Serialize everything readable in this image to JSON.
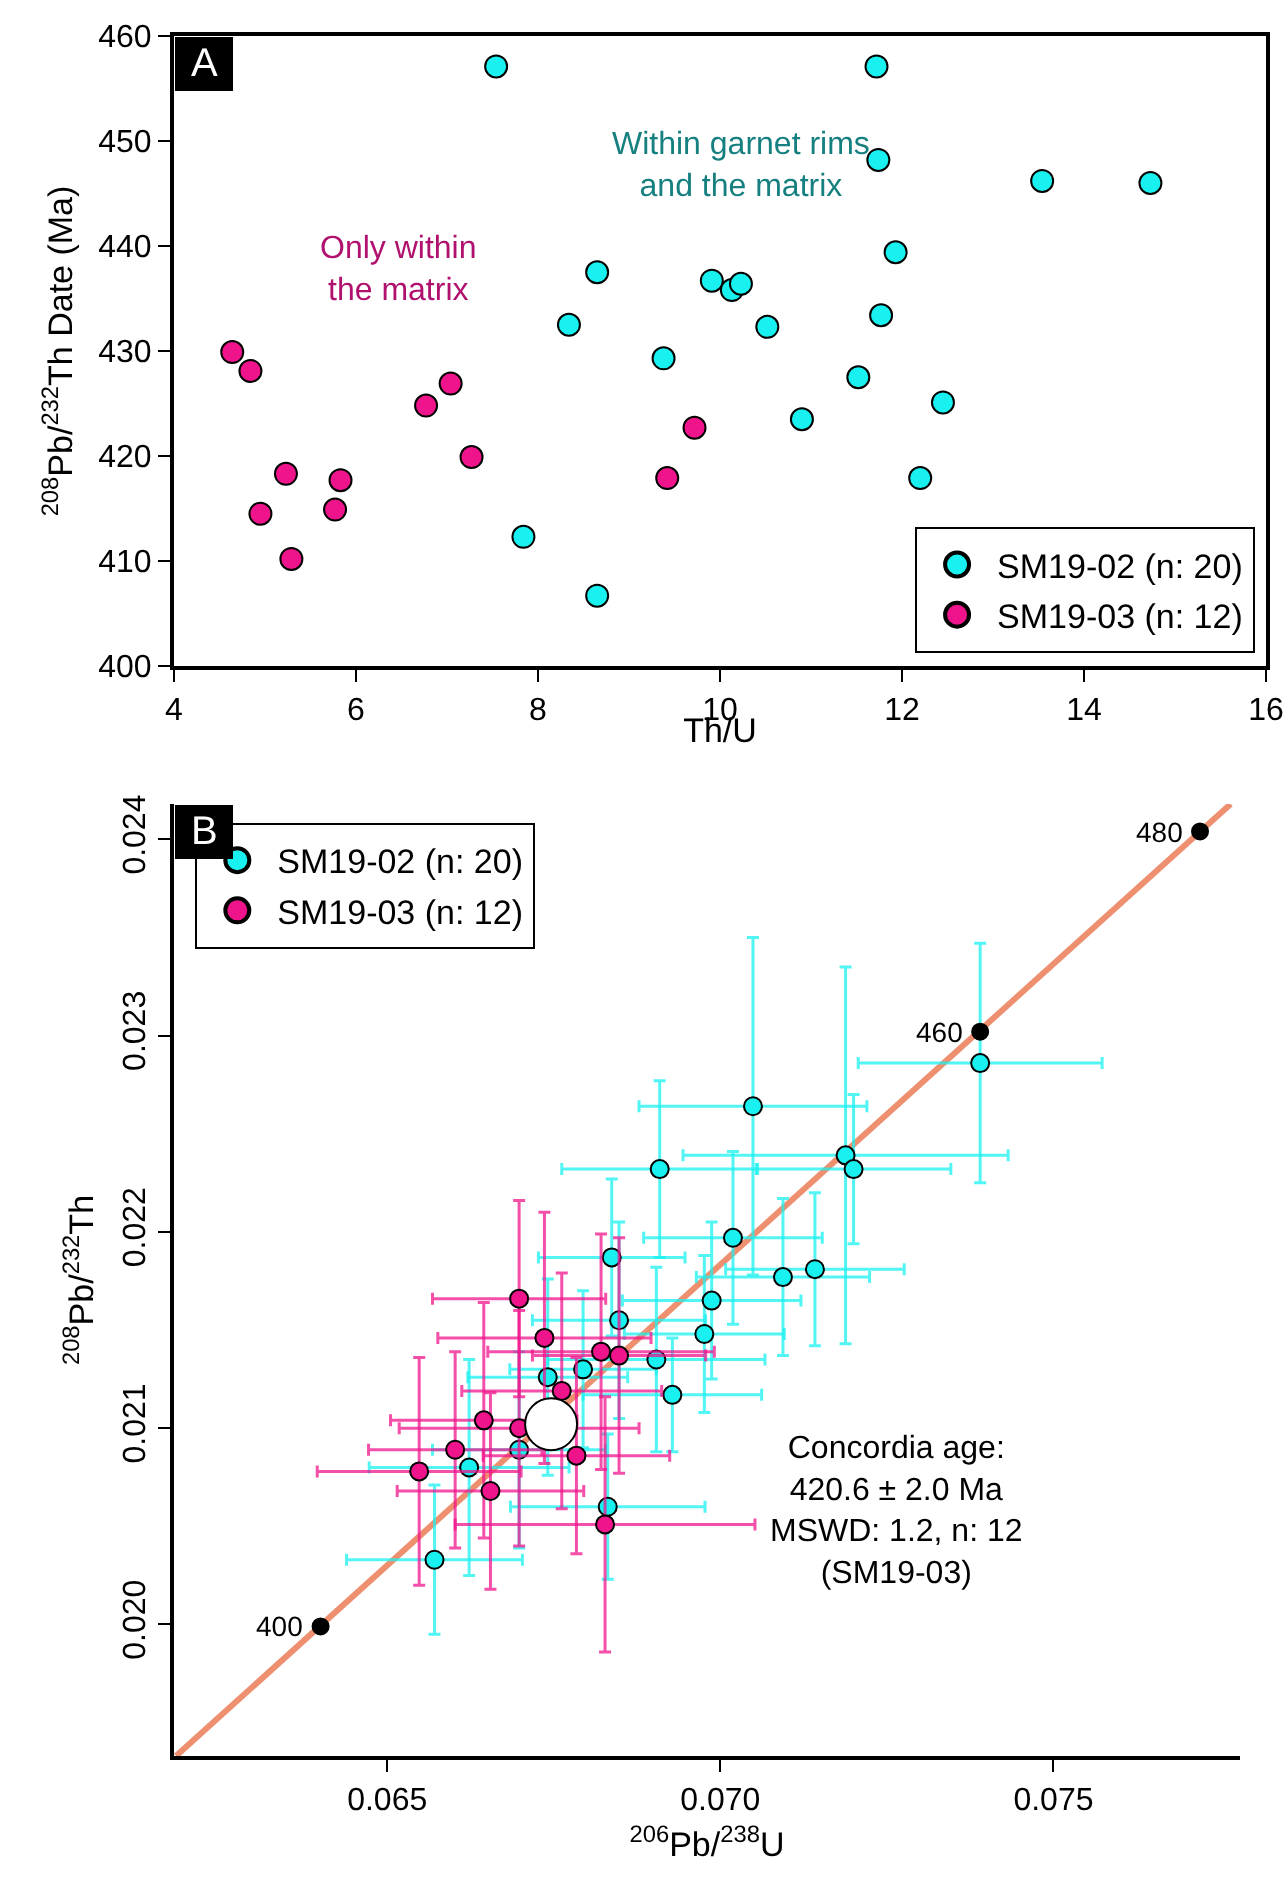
{
  "chart_data": [
    {
      "type": "scatter",
      "title": "A",
      "xlabel": "Th/U",
      "ylabel": "$^{208}$Pb/$^{232}$Th Date (Ma)",
      "xlim": [
        4,
        16
      ],
      "xticks": [
        4,
        6,
        8,
        10,
        12,
        14,
        16
      ],
      "ylim": [
        400,
        460
      ],
      "yticks": [
        400,
        410,
        420,
        430,
        440,
        450,
        460
      ],
      "grid": false,
      "legend": "bottom right",
      "marker": "circle",
      "annotations": [
        "Only within\nthe matrix",
        "Within garnet rims\nand the matrix"
      ],
      "series": [
        {
          "name": "SM19-02 (n: 20)",
          "color": "#19f0f0",
          "x": [
            7.54,
            11.72,
            11.74,
            13.54,
            14.73,
            11.93,
            8.65,
            9.91,
            10.13,
            10.23,
            8.34,
            10.52,
            11.77,
            9.38,
            11.52,
            12.45,
            10.9,
            12.2,
            7.84,
            8.65
          ],
          "values": [
            457.1,
            457.1,
            448.2,
            446.2,
            446,
            439.4,
            437.5,
            436.7,
            435.8,
            436.4,
            432.5,
            432.3,
            433.4,
            429.3,
            427.5,
            425.1,
            423.5,
            417.9,
            412.3,
            406.7
          ]
        },
        {
          "name": "SM19-03 (n: 12)",
          "color": "#f0148c",
          "x": [
            4.64,
            4.84,
            4.95,
            5.23,
            5.29,
            5.77,
            5.83,
            6.77,
            7.04,
            7.27,
            9.42,
            9.72
          ],
          "values": [
            429.9,
            428.1,
            414.5,
            418.3,
            410.2,
            414.9,
            417.7,
            424.8,
            426.9,
            419.9,
            417.9,
            422.7
          ]
        }
      ]
    },
    {
      "type": "scatter",
      "title": "B",
      "xlabel": "$^{206}$Pb/$^{238}$U",
      "ylabel": "$^{208}$Pb/$^{232}$Th",
      "xlim": [
        0.0618,
        0.0778
      ],
      "xticks": [
        0.065,
        {
          "value": 0.07,
          "label": "0.070"
        },
        0.075
      ],
      "ylim": [
        0.01933,
        0.02418
      ],
      "yticks": [
        {
          "value": 0.02,
          "label": "0.020"
        },
        0.021,
        0.022,
        0.023,
        0.024
      ],
      "grid": false,
      "legend": "top left",
      "annotations": [
        "Concordia age:\n420.6 ± 2.0 Ma\nMSWD: 1.2, n: 12\n(SM19-03)",
        {
          "text": "400",
          "x": 0.064,
          "y": 0.01999
        },
        {
          "text": "460",
          "x": 0.0739,
          "y": 0.02302
        },
        {
          "text": "480",
          "x": 0.0772,
          "y": 0.02404
        }
      ],
      "series": [
        {
          "type": "line",
          "color": "#ee9070",
          "x": [
            0.06183,
            0.07766
          ],
          "values": [
            0.01933,
            0.02418
          ]
        },
        {
          "name": "SM19-02 (n: 20)",
          "color": "#19f0f0",
          "marker": "circle",
          "x": [
            0.07049,
            0.07188,
            0.0739,
            0.06909,
            0.072,
            0.07019,
            0.07142,
            0.06987,
            0.06837,
            0.06904,
            0.06928,
            0.06571,
            0.06623,
            0.06831,
            0.06848,
            0.06794,
            0.06976,
            0.06741,
            0.07094,
            0.06698
          ],
          "values": [
            0.02264,
            0.02239,
            0.02286,
            0.02232,
            0.02232,
            0.02197,
            0.02181,
            0.02165,
            0.02187,
            0.02135,
            0.02117,
            0.02033,
            0.0208,
            0.0206,
            0.02155,
            0.0213,
            0.02148,
            0.02126,
            0.02177,
            0.02089
          ],
          "xerrors": [
            0.00171,
            0.00244,
            0.00183,
            0.00147,
            0.00146,
            0.00134,
            0.00134,
            0.00134,
            0.0011,
            0.00163,
            0.00134,
            0.00132,
            0.0015,
            0.00146,
            0.0013,
            0.0011,
            0.0012,
            0.0012,
            0.0013,
            0.0013
          ],
          "errors": [
            0.00086,
            0.00096,
            0.00061,
            0.00045,
            0.00038,
            0.00044,
            0.00039,
            0.0004,
            0.0004,
            0.00047,
            0.00029,
            0.00038,
            0.00055,
            0.00037,
            0.0005,
            0.0004,
            0.0004,
            0.0005,
            0.0004,
            0.0005
          ]
        },
        {
          "name": "SM19-03 (n: 12)",
          "color": "#f0148c",
          "marker": "circle",
          "x": [
            0.06548,
            0.06827,
            0.06736,
            0.06821,
            0.06698,
            0.06645,
            0.06762,
            0.06602,
            0.06784,
            0.06848,
            0.06698,
            0.06655
          ],
          "values": [
            0.02078,
            0.02051,
            0.02146,
            0.02139,
            0.021,
            0.02104,
            0.02119,
            0.02089,
            0.02086,
            0.02137,
            0.02166,
            0.02068
          ],
          "xerrors": [
            0.00153,
            0.00225,
            0.0016,
            0.0017,
            0.0018,
            0.0014,
            0.0015,
            0.0013,
            0.0014,
            0.0013,
            0.0013,
            0.0014
          ],
          "errors": [
            0.00058,
            0.00065,
            0.00064,
            0.0006,
            0.0006,
            0.0006,
            0.0006,
            0.0005,
            0.0005,
            0.0006,
            0.0005,
            0.0005
          ]
        },
        {
          "color": "#000000",
          "marker": "circle",
          "x": [
            0.064,
            0.0739,
            0.0772
          ],
          "values": [
            0.01999,
            0.02302,
            0.02404
          ]
        },
        {
          "color": "#ffffff",
          "marker": "circle",
          "x": [
            0.06746
          ],
          "values": [
            0.02102
          ]
        }
      ]
    }
  ]
}
